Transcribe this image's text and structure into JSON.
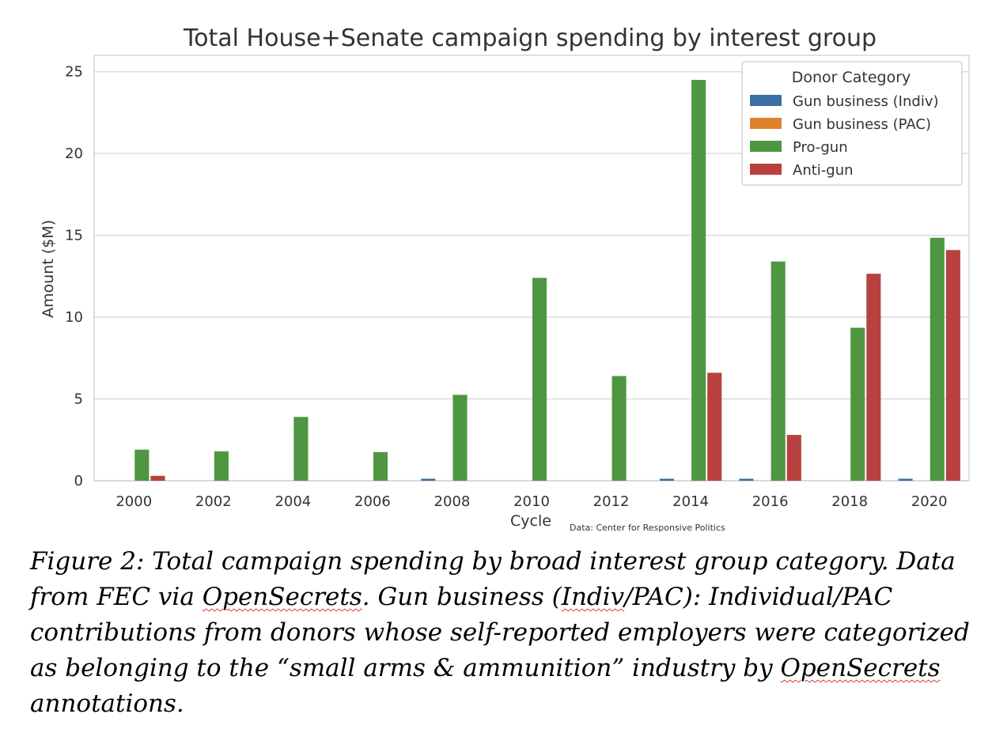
{
  "colors": {
    "gun_business_indiv": "#3a6ea5",
    "gun_business_pac": "#e1812c",
    "pro_gun": "#4f9643",
    "anti_gun": "#b8413f",
    "grid": "#dcdcdc",
    "frame": "#cccccc"
  },
  "chart_data": {
    "type": "bar",
    "title": "Total House+Senate campaign spending by interest group",
    "xlabel": "Cycle",
    "ylabel": "Amount ($M)",
    "ylim": [
      0,
      26
    ],
    "yticks": [
      0,
      5,
      10,
      15,
      20,
      25
    ],
    "grid": true,
    "legend_title": "Donor Category",
    "legend_position": "top-right",
    "source_note": "Data: Center for Responsive Politics",
    "categories": [
      "2000",
      "2002",
      "2004",
      "2006",
      "2008",
      "2010",
      "2012",
      "2014",
      "2016",
      "2018",
      "2020"
    ],
    "series": [
      {
        "name": "Gun business (Indiv)",
        "color": "#3a6ea5",
        "values": [
          0,
          0,
          0,
          0,
          0.12,
          0,
          0,
          0.12,
          0.12,
          0,
          0.12
        ]
      },
      {
        "name": "Gun business (PAC)",
        "color": "#e1812c",
        "values": [
          0,
          0,
          0,
          0,
          0,
          0,
          0,
          0,
          0,
          0,
          0
        ]
      },
      {
        "name": "Pro-gun",
        "color": "#4f9643",
        "values": [
          1.9,
          1.8,
          3.9,
          1.75,
          5.25,
          12.4,
          6.4,
          24.5,
          13.4,
          9.35,
          14.85
        ]
      },
      {
        "name": "Anti-gun",
        "color": "#b8413f",
        "values": [
          0.3,
          0,
          0,
          0,
          0,
          0,
          0,
          6.6,
          2.8,
          12.65,
          14.1
        ]
      }
    ]
  },
  "caption": {
    "part1": "Figure 2: Total campaign spending by broad interest group category. Data from FEC via ",
    "opensecrets_1": "OpenSecrets",
    "part2": ". Gun business (",
    "indiv": "Indiv",
    "part3": "/PAC): Individual/PAC contributions from donors whose self-reported employers were categorized as belonging to the “small arms & ammunition” industry by ",
    "opensecrets_2": "OpenSecrets",
    "part4": " annotations."
  }
}
